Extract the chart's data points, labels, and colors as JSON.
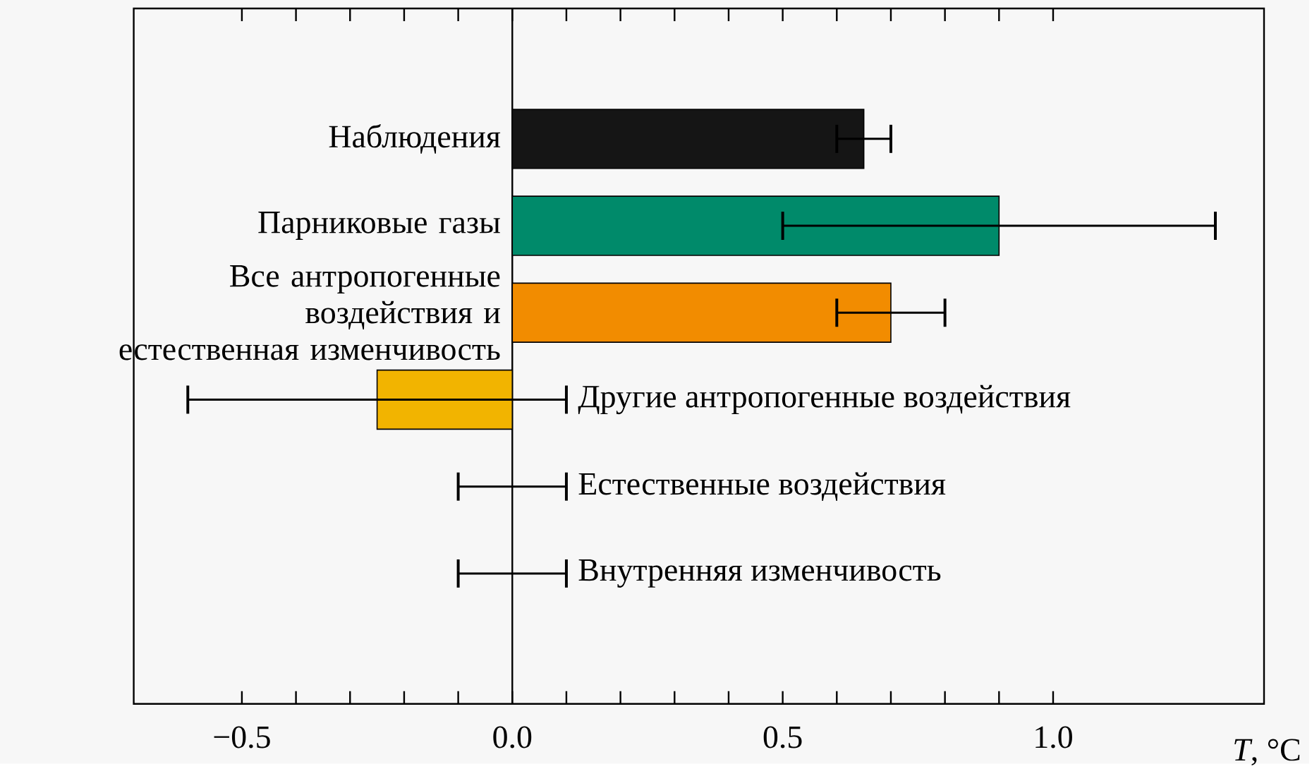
{
  "chart_data": {
    "type": "bar",
    "orientation": "horizontal",
    "xlabel": "*T*, °C",
    "categories": [
      "Наблюдения",
      "Парниковые газы",
      "Все антропогенные воздействия и естественная изменчивость",
      "Другие антропогенные воздействия",
      "Естественные воздействия",
      "Внутренняя изменчивость"
    ],
    "values": [
      0.65,
      0.9,
      0.7,
      -0.25,
      0,
      0
    ],
    "colors": [
      "#151515",
      "#008a6a",
      "#f28c00",
      "#f2b400",
      null,
      null
    ],
    "errors": [
      [
        0.6,
        0.7
      ],
      [
        0.5,
        1.3
      ],
      [
        0.6,
        0.8
      ],
      [
        -0.6,
        0.1
      ],
      [
        -0.1,
        0.1
      ],
      [
        -0.1,
        0.1
      ]
    ],
    "xlim": [
      -0.7,
      1.39
    ],
    "xticks": [
      {
        "value": -0.5,
        "label": "−0.5"
      },
      {
        "value": 0,
        "label": "0.0"
      },
      {
        "value": 0.5,
        "label": "0.5"
      },
      {
        "value": 1.0,
        "label": "1.0"
      }
    ],
    "ref_lines": [
      {
        "axis": "x",
        "value": 0,
        "color": "#000000"
      }
    ]
  }
}
